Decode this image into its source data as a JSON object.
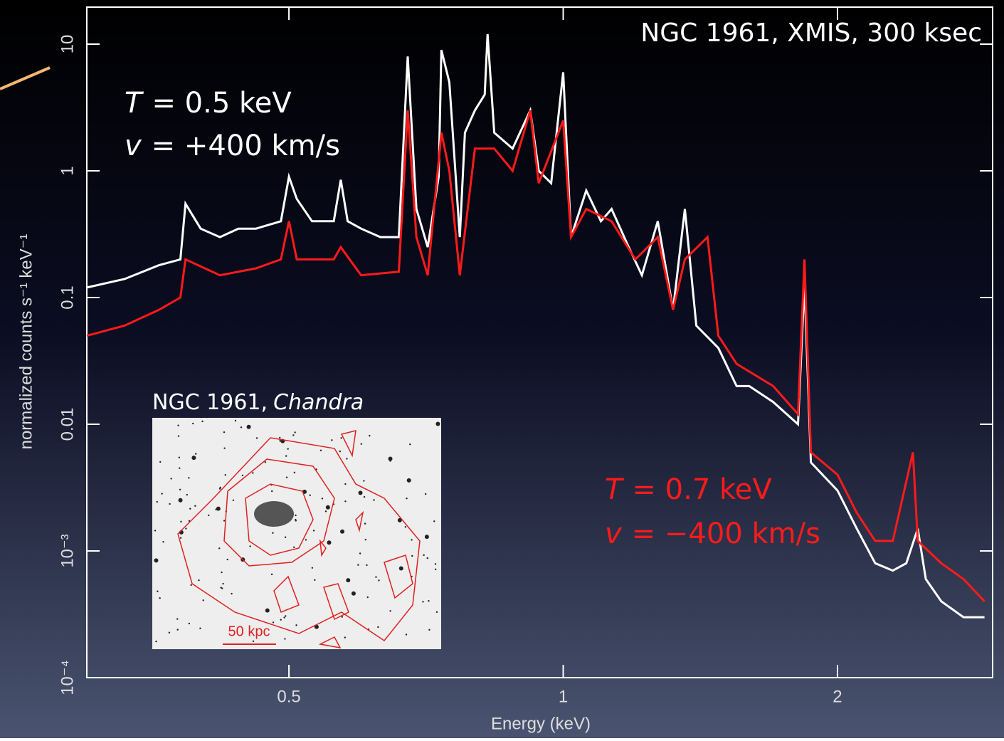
{
  "chart_data": {
    "type": "line",
    "title": "NGC 1961, XMIS, 300 ksec",
    "xlabel": "Energy (keV)",
    "ylabel": "normalized counts s⁻¹ keV⁻¹",
    "xscale": "log",
    "yscale": "log",
    "xlim": [
      0.3,
      2.96
    ],
    "ylim": [
      0.0001,
      19.6
    ],
    "xticks": [
      0.5,
      1,
      2
    ],
    "yticks": [
      {
        "value": 0.0001,
        "label": "10⁻⁴"
      },
      {
        "value": 0.001,
        "label": "10⁻³"
      },
      0.01,
      0.1,
      1,
      10
    ],
    "series": [
      {
        "color": "#ffffff",
        "x": [
          0.3,
          0.33,
          0.36,
          0.38,
          0.385,
          0.4,
          0.42,
          0.44,
          0.46,
          0.49,
          0.5,
          0.51,
          0.53,
          0.56,
          0.57,
          0.58,
          0.6,
          0.63,
          0.66,
          0.675,
          0.69,
          0.71,
          0.73,
          0.735,
          0.75,
          0.77,
          0.78,
          0.8,
          0.82,
          0.826,
          0.84,
          0.88,
          0.92,
          0.94,
          0.97,
          1.0,
          1.02,
          1.06,
          1.1,
          1.13,
          1.18,
          1.22,
          1.27,
          1.32,
          1.36,
          1.4,
          1.48,
          1.55,
          1.6,
          1.7,
          1.81,
          1.84,
          1.87,
          2.0,
          2.1,
          2.2,
          2.3,
          2.38,
          2.45,
          2.5,
          2.6,
          2.75,
          2.9
        ],
        "values": [
          0.12,
          0.14,
          0.18,
          0.2,
          0.55,
          0.35,
          0.3,
          0.35,
          0.35,
          0.4,
          0.9,
          0.6,
          0.4,
          0.4,
          0.85,
          0.4,
          0.35,
          0.3,
          0.3,
          8,
          0.5,
          0.25,
          0.9,
          9,
          5,
          0.3,
          2,
          3,
          4,
          12,
          2,
          1.5,
          3,
          1,
          0.8,
          6,
          0.3,
          0.7,
          0.4,
          0.5,
          0.25,
          0.15,
          0.4,
          0.08,
          0.5,
          0.06,
          0.04,
          0.02,
          0.02,
          0.015,
          0.01,
          0.13,
          0.005,
          0.003,
          0.0015,
          0.0008,
          0.0007,
          0.0008,
          0.0015,
          0.0006,
          0.0004,
          0.0003,
          0.0003
        ]
      },
      {
        "color": "#ff1a1a",
        "x": [
          0.3,
          0.33,
          0.36,
          0.38,
          0.385,
          0.42,
          0.46,
          0.49,
          0.5,
          0.51,
          0.56,
          0.57,
          0.6,
          0.66,
          0.675,
          0.69,
          0.71,
          0.735,
          0.75,
          0.77,
          0.8,
          0.84,
          0.88,
          0.92,
          0.94,
          1.0,
          1.02,
          1.06,
          1.13,
          1.2,
          1.27,
          1.32,
          1.36,
          1.44,
          1.48,
          1.55,
          1.7,
          1.81,
          1.84,
          1.87,
          2.0,
          2.1,
          2.2,
          2.3,
          2.42,
          2.45,
          2.6,
          2.75,
          2.9
        ],
        "values": [
          0.05,
          0.06,
          0.08,
          0.1,
          0.2,
          0.15,
          0.17,
          0.2,
          0.4,
          0.2,
          0.2,
          0.25,
          0.15,
          0.16,
          3,
          0.3,
          0.15,
          2,
          1,
          0.15,
          1.5,
          1.5,
          1,
          3,
          0.8,
          2.5,
          0.3,
          0.5,
          0.4,
          0.2,
          0.3,
          0.08,
          0.2,
          0.3,
          0.05,
          0.03,
          0.02,
          0.012,
          0.2,
          0.006,
          0.004,
          0.002,
          0.0012,
          0.0012,
          0.006,
          0.0012,
          0.0008,
          0.0006,
          0.0004
        ]
      }
    ],
    "annotations": [
      {
        "italic": "T",
        "text": "= 0.5 keV",
        "color": "#ffffff"
      },
      {
        "italic": "v",
        "text": "= +400 km/s",
        "color": "#ffffff"
      },
      {
        "italic": "T",
        "text": "= 0.7 keV",
        "color": "#ff1a1a"
      },
      {
        "italic": "v",
        "text": "= −400 km/s",
        "color": "#ff1a1a"
      }
    ],
    "inset": {
      "title": "NGC 1961,",
      "title_italic": "Chandra",
      "scale_label": "50 kpc"
    }
  }
}
